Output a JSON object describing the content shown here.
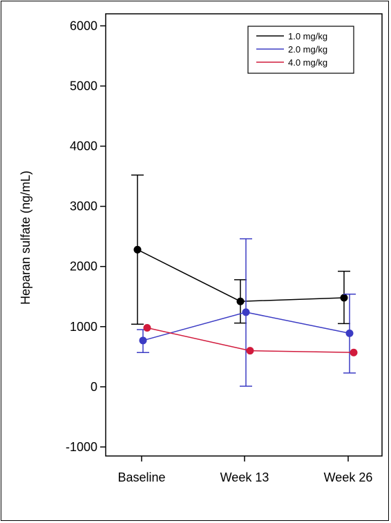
{
  "chart_data": {
    "type": "line",
    "title": "",
    "xlabel": "",
    "ylabel": "Heparan sulfate (ng/mL)",
    "categories": [
      "Baseline",
      "Week 13",
      "Week 26"
    ],
    "ylim": [
      -1150,
      6200
    ],
    "yticks": [
      -1000,
      0,
      1000,
      2000,
      3000,
      4000,
      5000,
      6000
    ],
    "grid": false,
    "legend_position": "top-right",
    "series": [
      {
        "name": "1.0 mg/kg",
        "color": "#000000",
        "values": [
          2280,
          1420,
          1480
        ],
        "error_low": [
          1040,
          1060,
          1050
        ],
        "error_high": [
          3520,
          1780,
          1920
        ]
      },
      {
        "name": "2.0 mg/kg",
        "color": "#3b3bc4",
        "values": [
          770,
          1240,
          890
        ],
        "error_low": [
          570,
          10,
          230
        ],
        "error_high": [
          950,
          2460,
          1540
        ]
      },
      {
        "name": "4.0 mg/kg",
        "color": "#d11a3c",
        "values": [
          980,
          600,
          570
        ],
        "error_low": [],
        "error_high": []
      }
    ]
  }
}
